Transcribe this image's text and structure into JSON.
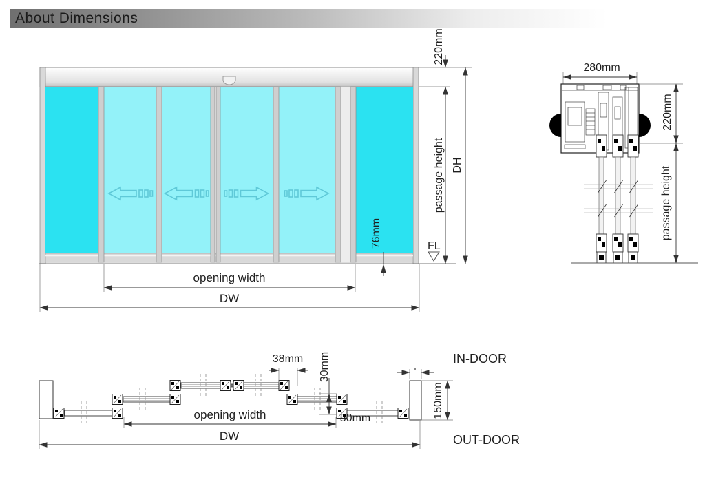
{
  "title": "About Dimensions",
  "colors": {
    "fixed_glass": "#2BE2F1",
    "sliding_glass": "#93F2F9",
    "arrow_stroke": "#5FC9D8",
    "frame_fill": "#cfcfcf",
    "line": "#333333"
  },
  "front_view": {
    "panels": [
      {
        "type": "fixed"
      },
      {
        "type": "slide-left"
      },
      {
        "type": "slide-left"
      },
      {
        "type": "slide-right"
      },
      {
        "type": "slide-right"
      },
      {
        "type": "fixed"
      }
    ],
    "labels": {
      "header_height": "220mm",
      "passage_height": "passage height",
      "door_height": "DH",
      "floor_level": "FL",
      "bottom_rail_height": "76mm",
      "opening_width": "opening width",
      "door_width": "DW"
    }
  },
  "section_view": {
    "labels": {
      "header_depth": "280mm",
      "header_height": "220mm",
      "passage_height": "passage height"
    }
  },
  "plan_view": {
    "labels": {
      "interlock_width": "38mm",
      "track_offset": "30mm",
      "overlap": "50mm",
      "opening_width": "opening width",
      "door_width": "DW",
      "post_depth": "150mm",
      "indoor": "IN-DOOR",
      "outdoor": "OUT-DOOR"
    }
  }
}
